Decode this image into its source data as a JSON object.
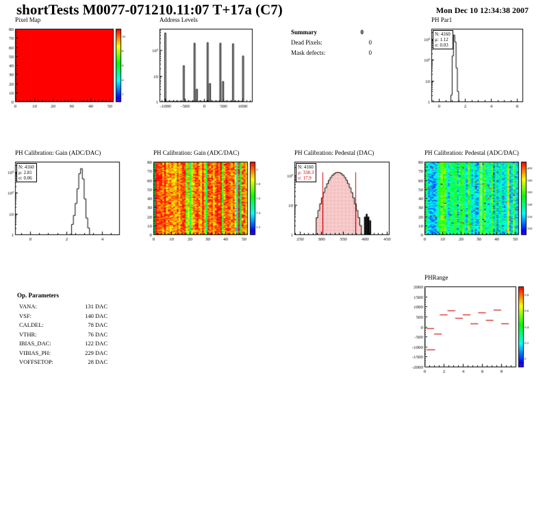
{
  "page": {
    "title": "shortTests M0077-071210.11:07 T+17a (C7)",
    "datetime": "Mon Dec 10 12:34:38 2007"
  },
  "summary": {
    "title": "Summary",
    "value": "0",
    "rows": [
      {
        "label": "Dead Pixels:",
        "value": "0"
      },
      {
        "label": "Mask defects:",
        "value": "0"
      }
    ]
  },
  "op_parameters": {
    "title": "Op. Parameters",
    "rows": [
      {
        "label": "VANA:",
        "value": "131 DAC"
      },
      {
        "label": "VSF:",
        "value": "140 DAC"
      },
      {
        "label": "CALDEL:",
        "value": "78 DAC"
      },
      {
        "label": "VTHR:",
        "value": "76 DAC"
      },
      {
        "label": "IBIAS_DAC:",
        "value": "122 DAC"
      },
      {
        "label": "VIBIAS_PH:",
        "value": "229 DAC"
      },
      {
        "label": "VOFFSETOP:",
        "value": "28 DAC"
      }
    ]
  },
  "chart_data": [
    {
      "id": "pixel-map",
      "type": "heatmap",
      "title": "Pixel Map",
      "xlim": [
        0,
        52
      ],
      "ylim": [
        0,
        80
      ],
      "xticks": [
        0,
        10,
        20,
        30,
        40,
        50
      ],
      "yticks": [
        0,
        10,
        20,
        30,
        40,
        50,
        60,
        70,
        80
      ],
      "xminor": 2,
      "yminor": 2,
      "uniform": true,
      "uniform_color": "#ff0000",
      "colorbar": {
        "labels": [
          "10",
          "8",
          "6",
          "4",
          "2"
        ]
      }
    },
    {
      "id": "address-levels",
      "type": "log-hist-spikes",
      "title": "Address Levels",
      "xlim": [
        -1150,
        1250
      ],
      "xticks": [
        -1000,
        -500,
        0,
        500,
        1000
      ],
      "xminor": 100,
      "ymax": 700,
      "ylog_labels": [
        [
          1,
          "1"
        ],
        [
          10,
          "10"
        ],
        [
          100,
          "10²"
        ]
      ],
      "spike_width": 30,
      "spikes": [
        [
          -1000,
          480
        ],
        [
          -520,
          25
        ],
        [
          -240,
          190
        ],
        [
          -180,
          3
        ],
        [
          100,
          200
        ],
        [
          160,
          5
        ],
        [
          430,
          190
        ],
        [
          500,
          6
        ],
        [
          760,
          180
        ],
        [
          1020,
          60
        ]
      ]
    },
    {
      "id": "ph-par1",
      "type": "log-hist",
      "title": "PH Par1",
      "stats": {
        "n": "N: 4160",
        "mean": "μ: 1.12",
        "sigma": "σ: 0.03"
      },
      "xlim": [
        -0.6,
        6.4
      ],
      "xticks": [
        0,
        2,
        4,
        6
      ],
      "xminor": 0.5,
      "ymax": 3000,
      "ylog_labels": [
        [
          1,
          "1"
        ],
        [
          10,
          "10"
        ],
        [
          100,
          "10²"
        ],
        [
          1000,
          "10³"
        ]
      ],
      "bin_width": 0.1,
      "bins": [
        [
          0.9,
          2
        ],
        [
          1.0,
          150
        ],
        [
          1.1,
          1500
        ],
        [
          1.2,
          700
        ],
        [
          1.3,
          40
        ],
        [
          1.4,
          3
        ]
      ]
    },
    {
      "id": "gain-hist",
      "type": "log-hist",
      "title": "PH Calibration: Gain (ADC/DAC)",
      "stats": {
        "n": "N: 4160",
        "mean": "μ: 2.81",
        "sigma": "σ: 0.06"
      },
      "xlim": [
        -0.85,
        4.95
      ],
      "xticks": [
        0,
        2,
        4
      ],
      "xminor": 0.5,
      "ymax": 3000,
      "ylog_labels": [
        [
          1,
          "1"
        ],
        [
          10,
          "10"
        ],
        [
          100,
          "10²"
        ],
        [
          1000,
          "10³"
        ]
      ],
      "bin_width": 0.1,
      "bins": [
        [
          2.2,
          1
        ],
        [
          2.3,
          3
        ],
        [
          2.4,
          8
        ],
        [
          2.5,
          30
        ],
        [
          2.6,
          150
        ],
        [
          2.7,
          800
        ],
        [
          2.8,
          1400
        ],
        [
          2.9,
          450
        ],
        [
          3.0,
          50
        ],
        [
          3.1,
          6
        ],
        [
          3.2,
          2
        ]
      ]
    },
    {
      "id": "gain-map",
      "type": "heatmap",
      "title": "PH Calibration: Gain (ADC/DAC)",
      "xlim": [
        0,
        52
      ],
      "ylim": [
        0,
        80
      ],
      "xticks": [
        0,
        10,
        20,
        30,
        40,
        50
      ],
      "yticks": [
        0,
        10,
        20,
        30,
        40,
        50,
        60,
        70,
        80
      ],
      "xminor": 2,
      "yminor": 2,
      "noise": {
        "seed": 7,
        "base": 0.86,
        "grad": 0.08,
        "col_spread": 0.14,
        "pix_spread": 0.14,
        "low_col_prob": 0.08,
        "low_col_drop": 0.38
      },
      "colorbar": {
        "labels": [
          "3",
          "2.8",
          "2.6",
          "2.4",
          "2.2"
        ]
      }
    },
    {
      "id": "pedestal-hist",
      "type": "log-hist",
      "title": "PH Calibration: Pedestal (DAC)",
      "stats": {
        "n": "N: 4160",
        "mean": "μ: 338.3",
        "sigma": "σ: 17.9"
      },
      "stats_red": true,
      "xlim": [
        238,
        455
      ],
      "xticks": [
        250,
        300,
        350,
        400,
        450
      ],
      "xminor": 10,
      "ymax": 300,
      "ylog_labels": [
        [
          1,
          "1"
        ],
        [
          10,
          "10"
        ],
        [
          100,
          "10²"
        ]
      ],
      "bin_width": 4,
      "gauss": {
        "mean": 338,
        "sigma": 18,
        "peak": 130,
        "from": 288,
        "to": 392
      },
      "fill": "dotted-red",
      "extra_black_bins": [
        [
          398,
          4
        ],
        [
          402,
          5
        ],
        [
          406,
          4
        ],
        [
          410,
          3
        ]
      ],
      "red_lines": [
        302,
        378
      ]
    },
    {
      "id": "pedestal-map",
      "type": "heatmap",
      "title": "PH Calibration: Pedestal (ADC/DAC)",
      "xlim": [
        0,
        52
      ],
      "ylim": [
        0,
        80
      ],
      "xticks": [
        0,
        10,
        20,
        30,
        40,
        50
      ],
      "yticks": [
        0,
        10,
        20,
        30,
        40,
        50,
        60,
        70,
        80
      ],
      "xminor": 2,
      "yminor": 2,
      "noise": {
        "seed": 13,
        "base": 0.47,
        "grad": 0,
        "col_spread": 0.26,
        "pix_spread": 0.13,
        "hot_prob": 0.015
      },
      "colorbar": {
        "labels": [
          "400",
          "380",
          "360",
          "340",
          "320",
          "300"
        ]
      }
    },
    {
      "id": "phrange",
      "type": "segments",
      "title": "PHRange",
      "xlim": [
        0,
        9.5
      ],
      "xticks": [
        0,
        2,
        4,
        6,
        8
      ],
      "xminor": 0.5,
      "ylim": [
        -2000,
        2000
      ],
      "yticks": [
        2000,
        1500,
        1000,
        500,
        0,
        -500,
        -1000,
        -1500,
        -2000
      ],
      "yminor": 100,
      "color": "#cc2222",
      "segments": [
        [
          0.2,
          1.0,
          -100
        ],
        [
          0.2,
          1.1,
          -1150
        ],
        [
          1.0,
          1.8,
          -350
        ],
        [
          1.6,
          2.4,
          600
        ],
        [
          2.4,
          3.2,
          820
        ],
        [
          3.2,
          4.0,
          420
        ],
        [
          4.0,
          4.8,
          600
        ],
        [
          4.8,
          5.6,
          150
        ],
        [
          5.6,
          6.4,
          700
        ],
        [
          6.4,
          7.2,
          320
        ],
        [
          7.2,
          8.0,
          850
        ],
        [
          8.0,
          8.8,
          150
        ]
      ],
      "colorbar": {
        "labels": [
          "0.8",
          "0.6",
          "0.4",
          "0.2",
          "0"
        ]
      }
    }
  ]
}
